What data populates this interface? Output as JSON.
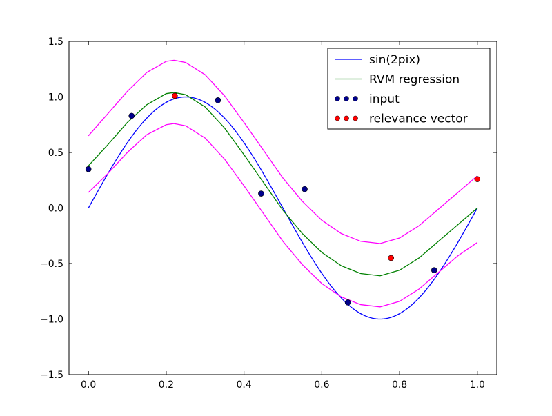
{
  "chart_data": {
    "type": "scatter",
    "xlim": [
      -0.05,
      1.05
    ],
    "ylim": [
      -1.5,
      1.5
    ],
    "xticks": [
      {
        "value": 0.0,
        "label": "0.0"
      },
      {
        "value": 0.2,
        "label": "0.2"
      },
      {
        "value": 0.4,
        "label": "0.4"
      },
      {
        "value": 0.6,
        "label": "0.6"
      },
      {
        "value": 0.8,
        "label": "0.8"
      },
      {
        "value": 1.0,
        "label": "1.0"
      }
    ],
    "yticks": [
      {
        "value": 1.5,
        "label": "1.5"
      },
      {
        "value": 1.0,
        "label": "1.0"
      },
      {
        "value": 0.5,
        "label": "0.5"
      },
      {
        "value": 0.0,
        "label": "0.0"
      },
      {
        "value": -0.5,
        "label": "−0.5"
      },
      {
        "value": -1.0,
        "label": "−1.0"
      },
      {
        "value": -1.5,
        "label": "−1.5"
      }
    ],
    "grid": false,
    "legend_position": "top-right",
    "series": [
      {
        "name": "sin(2pix)",
        "kind": "line",
        "color": "#0000ff",
        "function": "sin(2*pi*x)",
        "x_range": [
          0,
          1
        ]
      },
      {
        "name": "RVM regression",
        "kind": "line",
        "color": "#008000",
        "x": [
          0.0,
          0.05,
          0.1,
          0.15,
          0.2,
          0.22,
          0.25,
          0.3,
          0.35,
          0.4,
          0.45,
          0.5,
          0.55,
          0.6,
          0.65,
          0.7,
          0.75,
          0.8,
          0.85,
          0.9,
          0.95,
          1.0
        ],
        "y": [
          0.38,
          0.57,
          0.77,
          0.93,
          1.03,
          1.04,
          1.02,
          0.91,
          0.72,
          0.48,
          0.23,
          -0.02,
          -0.23,
          -0.4,
          -0.52,
          -0.59,
          -0.61,
          -0.56,
          -0.45,
          -0.3,
          -0.15,
          0.0
        ]
      },
      {
        "name": "",
        "kind": "line",
        "color": "#ff00ff",
        "x": [
          0.0,
          0.05,
          0.1,
          0.15,
          0.2,
          0.22,
          0.25,
          0.3,
          0.35,
          0.4,
          0.45,
          0.5,
          0.55,
          0.6,
          0.65,
          0.7,
          0.75,
          0.8,
          0.85,
          0.9,
          0.95,
          1.0
        ],
        "y": [
          0.65,
          0.85,
          1.05,
          1.22,
          1.32,
          1.33,
          1.31,
          1.2,
          1.01,
          0.77,
          0.52,
          0.27,
          0.06,
          -0.11,
          -0.23,
          -0.3,
          -0.32,
          -0.27,
          -0.16,
          -0.01,
          0.14,
          0.29
        ]
      },
      {
        "name": "",
        "kind": "line",
        "color": "#ff00ff",
        "x": [
          0.0,
          0.05,
          0.1,
          0.15,
          0.2,
          0.22,
          0.25,
          0.3,
          0.35,
          0.4,
          0.45,
          0.5,
          0.55,
          0.6,
          0.65,
          0.7,
          0.75,
          0.8,
          0.85,
          0.9,
          0.95,
          1.0
        ],
        "y": [
          0.14,
          0.31,
          0.5,
          0.66,
          0.75,
          0.76,
          0.74,
          0.63,
          0.44,
          0.2,
          -0.05,
          -0.3,
          -0.51,
          -0.68,
          -0.8,
          -0.87,
          -0.89,
          -0.84,
          -0.73,
          -0.58,
          -0.43,
          -0.31
        ]
      },
      {
        "name": "input",
        "kind": "scatter",
        "color": "#00008b",
        "x": [
          0.0,
          0.111,
          0.333,
          0.444,
          0.556,
          0.667,
          0.889
        ],
        "y": [
          0.35,
          0.83,
          0.97,
          0.13,
          0.17,
          -0.85,
          -0.56
        ]
      },
      {
        "name": "relevance vector",
        "kind": "scatter",
        "color": "#ff0000",
        "x": [
          0.222,
          0.778,
          1.0
        ],
        "y": [
          1.01,
          -0.45,
          0.26
        ]
      }
    ]
  },
  "legend": {
    "items": [
      {
        "label": "sin(2pix)",
        "color": "#0000ff",
        "kind": "line"
      },
      {
        "label": "RVM regression",
        "color": "#008000",
        "kind": "line"
      },
      {
        "label": "input",
        "color": "#00008b",
        "kind": "scatter"
      },
      {
        "label": "relevance vector",
        "color": "#ff0000",
        "kind": "scatter"
      }
    ]
  }
}
